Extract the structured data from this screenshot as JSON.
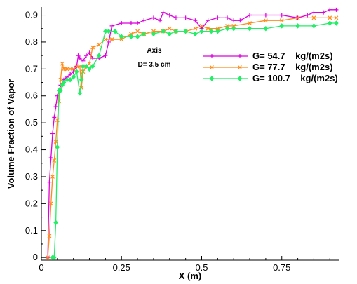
{
  "chart_data": {
    "type": "line",
    "xlabel": "X (m)",
    "ylabel": "Volume Fraction of Vapor",
    "xlim": [
      0,
      0.93
    ],
    "ylim": [
      -0.01,
      0.93
    ],
    "xticks": [
      0,
      0.25,
      0.5,
      0.75
    ],
    "xtick_labels": [
      "0",
      "0.25",
      "0.5",
      "0.75"
    ],
    "yticks": [
      0,
      0.1,
      0.2,
      0.3,
      0.4,
      0.5,
      0.6,
      0.7,
      0.8,
      0.9
    ],
    "ytick_labels": [
      "0",
      "0.1",
      "0.2",
      "0.3",
      "0.4",
      "0.5",
      "0.6",
      "0.7",
      "0.8",
      "0.9"
    ],
    "grid": false,
    "legend_position": "upper-right",
    "annotations": [
      "Axis",
      "D= 3.5 cm"
    ],
    "series": [
      {
        "name": "G= 54.7    kg/(m2s)",
        "color": "#dd00dd",
        "marker": "plus",
        "x": [
          0.02,
          0.025,
          0.03,
          0.035,
          0.04,
          0.045,
          0.05,
          0.055,
          0.06,
          0.07,
          0.08,
          0.09,
          0.1,
          0.11,
          0.115,
          0.12,
          0.13,
          0.14,
          0.15,
          0.16,
          0.18,
          0.2,
          0.21,
          0.22,
          0.25,
          0.28,
          0.3,
          0.32,
          0.35,
          0.37,
          0.38,
          0.4,
          0.42,
          0.45,
          0.48,
          0.5,
          0.52,
          0.55,
          0.58,
          0.6,
          0.62,
          0.65,
          0.7,
          0.75,
          0.8,
          0.83,
          0.85,
          0.88,
          0.9,
          0.92
        ],
        "y": [
          0.0,
          0.28,
          0.37,
          0.46,
          0.52,
          0.56,
          0.6,
          0.62,
          0.64,
          0.66,
          0.67,
          0.68,
          0.69,
          0.71,
          0.75,
          0.74,
          0.73,
          0.75,
          0.76,
          0.74,
          0.74,
          0.75,
          0.8,
          0.86,
          0.87,
          0.87,
          0.87,
          0.88,
          0.89,
          0.88,
          0.91,
          0.9,
          0.89,
          0.89,
          0.88,
          0.85,
          0.88,
          0.89,
          0.89,
          0.88,
          0.88,
          0.9,
          0.9,
          0.9,
          0.89,
          0.9,
          0.91,
          0.91,
          0.92,
          0.92
        ]
      },
      {
        "name": "G= 77.7    kg/(m2s)",
        "color": "#ff8c1a",
        "marker": "x",
        "x": [
          0.02,
          0.025,
          0.03,
          0.035,
          0.04,
          0.045,
          0.05,
          0.055,
          0.06,
          0.065,
          0.07,
          0.075,
          0.08,
          0.09,
          0.1,
          0.11,
          0.12,
          0.125,
          0.13,
          0.14,
          0.15,
          0.16,
          0.18,
          0.2,
          0.22,
          0.25,
          0.28,
          0.3,
          0.32,
          0.35,
          0.38,
          0.4,
          0.42,
          0.45,
          0.48,
          0.5,
          0.52,
          0.55,
          0.58,
          0.6,
          0.65,
          0.7,
          0.75,
          0.8,
          0.85,
          0.9,
          0.92
        ],
        "y": [
          0.0,
          0.08,
          0.2,
          0.3,
          0.36,
          0.43,
          0.51,
          0.58,
          0.66,
          0.72,
          0.7,
          0.7,
          0.7,
          0.7,
          0.7,
          0.71,
          0.71,
          0.63,
          0.69,
          0.71,
          0.72,
          0.78,
          0.79,
          0.81,
          0.81,
          0.81,
          0.83,
          0.84,
          0.83,
          0.84,
          0.84,
          0.85,
          0.84,
          0.84,
          0.85,
          0.86,
          0.85,
          0.85,
          0.86,
          0.86,
          0.87,
          0.88,
          0.88,
          0.89,
          0.89,
          0.89,
          0.89
        ]
      },
      {
        "name": "G= 100.7    kg/(m2s)",
        "color": "#22ee66",
        "marker": "diamond",
        "x": [
          0.035,
          0.04,
          0.045,
          0.05,
          0.055,
          0.06,
          0.065,
          0.07,
          0.08,
          0.09,
          0.1,
          0.11,
          0.12,
          0.125,
          0.13,
          0.14,
          0.15,
          0.16,
          0.18,
          0.2,
          0.21,
          0.23,
          0.25,
          0.28,
          0.3,
          0.32,
          0.35,
          0.38,
          0.4,
          0.42,
          0.45,
          0.48,
          0.5,
          0.53,
          0.55,
          0.58,
          0.6,
          0.65,
          0.7,
          0.75,
          0.8,
          0.85,
          0.9,
          0.92
        ],
        "y": [
          0.0,
          0.0,
          0.13,
          0.41,
          0.62,
          0.62,
          0.64,
          0.65,
          0.66,
          0.66,
          0.67,
          0.69,
          0.61,
          0.66,
          0.71,
          0.71,
          0.7,
          0.71,
          0.75,
          0.84,
          0.84,
          0.84,
          0.82,
          0.82,
          0.82,
          0.83,
          0.83,
          0.84,
          0.83,
          0.84,
          0.84,
          0.83,
          0.84,
          0.84,
          0.84,
          0.85,
          0.85,
          0.85,
          0.85,
          0.86,
          0.86,
          0.86,
          0.87,
          0.87
        ]
      }
    ]
  }
}
